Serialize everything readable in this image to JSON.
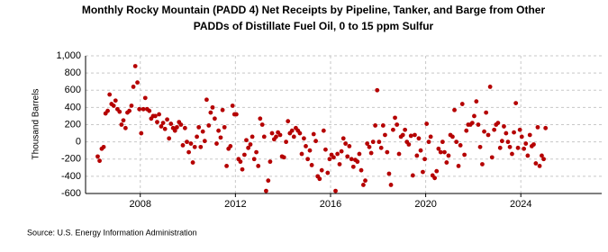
{
  "chart_data": {
    "type": "scatter",
    "title": [
      "Monthly Rocky Mountain (PADD 4) Net Receipts by Pipeline, Tanker, and Barge from Other",
      "PADDs of Distillate Fuel Oil, 0 to 15 ppm Sulfur"
    ],
    "ylabel": "Thousand Barrels",
    "source": "Source: U.S. Energy Information Administration",
    "color": "#b50000",
    "grid": true,
    "xlim": [
      2005.7,
      2027.4
    ],
    "xticks": [
      2008,
      2012,
      2016,
      2020,
      2024
    ],
    "ylim": [
      -600,
      1000
    ],
    "yticks": [
      -600,
      -400,
      -200,
      0,
      200,
      400,
      600,
      800,
      {
        "value": 1000,
        "label": "1,000"
      }
    ],
    "x": [
      2006.21,
      2006.29,
      2006.38,
      2006.46,
      2006.54,
      2006.63,
      2006.71,
      2006.79,
      2006.88,
      2006.96,
      2007.04,
      2007.13,
      2007.21,
      2007.29,
      2007.38,
      2007.46,
      2007.54,
      2007.63,
      2007.71,
      2007.79,
      2007.88,
      2007.96,
      2008.04,
      2008.13,
      2008.21,
      2008.29,
      2008.38,
      2008.46,
      2008.54,
      2008.63,
      2008.71,
      2008.79,
      2008.88,
      2008.96,
      2009.04,
      2009.13,
      2009.21,
      2009.29,
      2009.38,
      2009.46,
      2009.54,
      2009.63,
      2009.71,
      2009.79,
      2009.88,
      2009.96,
      2010.04,
      2010.13,
      2010.21,
      2010.29,
      2010.38,
      2010.46,
      2010.54,
      2010.63,
      2010.71,
      2010.79,
      2010.88,
      2010.96,
      2011.04,
      2011.13,
      2011.21,
      2011.29,
      2011.38,
      2011.46,
      2011.54,
      2011.63,
      2011.71,
      2011.79,
      2011.88,
      2011.96,
      2012.04,
      2012.13,
      2012.21,
      2012.29,
      2012.38,
      2012.46,
      2012.54,
      2012.63,
      2012.71,
      2012.79,
      2012.88,
      2012.96,
      2013.04,
      2013.13,
      2013.21,
      2013.29,
      2013.38,
      2013.46,
      2013.54,
      2013.63,
      2013.71,
      2013.79,
      2013.88,
      2013.96,
      2014.04,
      2014.13,
      2014.21,
      2014.29,
      2014.38,
      2014.46,
      2014.54,
      2014.63,
      2014.71,
      2014.79,
      2014.88,
      2014.96,
      2015.04,
      2015.13,
      2015.21,
      2015.29,
      2015.38,
      2015.46,
      2015.54,
      2015.63,
      2015.71,
      2015.79,
      2015.88,
      2015.96,
      2016.04,
      2016.13,
      2016.21,
      2016.29,
      2016.38,
      2016.46,
      2016.54,
      2016.63,
      2016.71,
      2016.79,
      2016.88,
      2016.96,
      2017.04,
      2017.13,
      2017.21,
      2017.29,
      2017.38,
      2017.46,
      2017.54,
      2017.63,
      2017.71,
      2017.79,
      2017.88,
      2017.96,
      2018.04,
      2018.13,
      2018.21,
      2018.29,
      2018.38,
      2018.46,
      2018.54,
      2018.63,
      2018.71,
      2018.79,
      2018.88,
      2018.96,
      2019.04,
      2019.13,
      2019.21,
      2019.29,
      2019.38,
      2019.46,
      2019.54,
      2019.63,
      2019.71,
      2019.79,
      2019.88,
      2019.96,
      2020.04,
      2020.13,
      2020.21,
      2020.29,
      2020.38,
      2020.46,
      2020.54,
      2020.63,
      2020.71,
      2020.79,
      2020.88,
      2020.96,
      2021.04,
      2021.13,
      2021.21,
      2021.29,
      2021.38,
      2021.46,
      2021.54,
      2021.63,
      2021.71,
      2021.79,
      2021.88,
      2021.96,
      2022.04,
      2022.13,
      2022.21,
      2022.29,
      2022.38,
      2022.46,
      2022.54,
      2022.63,
      2022.71,
      2022.79,
      2022.88,
      2022.96,
      2023.04,
      2023.13,
      2023.21,
      2023.29,
      2023.38,
      2023.46,
      2023.54,
      2023.63,
      2023.71,
      2023.79,
      2023.88,
      2023.96,
      2024.04,
      2024.13,
      2024.21,
      2024.29,
      2024.38,
      2024.46,
      2024.54,
      2024.63,
      2024.71,
      2024.79,
      2024.88,
      2024.96,
      2025.04
    ],
    "values": [
      -170,
      -220,
      -80,
      -60,
      330,
      360,
      550,
      440,
      420,
      480,
      380,
      350,
      200,
      250,
      160,
      340,
      360,
      420,
      640,
      880,
      690,
      380,
      100,
      380,
      510,
      380,
      360,
      270,
      300,
      300,
      230,
      320,
      180,
      220,
      150,
      260,
      40,
      210,
      160,
      130,
      170,
      230,
      200,
      -40,
      160,
      0,
      -120,
      -20,
      -240,
      -60,
      60,
      170,
      -60,
      120,
      10,
      490,
      190,
      340,
      400,
      270,
      -20,
      130,
      50,
      370,
      170,
      -280,
      -80,
      -50,
      420,
      320,
      320,
      -200,
      -230,
      -320,
      -150,
      20,
      -70,
      -30,
      60,
      -200,
      -120,
      -280,
      270,
      200,
      60,
      -570,
      -450,
      -230,
      100,
      30,
      60,
      110,
      80,
      -170,
      -180,
      0,
      240,
      100,
      130,
      60,
      160,
      130,
      100,
      -140,
      40,
      -50,
      -200,
      -100,
      -270,
      90,
      10,
      -400,
      -430,
      -330,
      130,
      -90,
      -360,
      -200,
      -150,
      -180,
      -570,
      -140,
      -260,
      -110,
      40,
      -20,
      -170,
      -50,
      -200,
      -290,
      -210,
      -230,
      -140,
      -330,
      -500,
      -450,
      -20,
      -60,
      -130,
      0,
      190,
      600,
      0,
      -70,
      190,
      80,
      -120,
      -370,
      -500,
      140,
      280,
      200,
      -140,
      60,
      80,
      140,
      0,
      -30,
      70,
      -390,
      80,
      -160,
      40,
      -100,
      -350,
      -200,
      210,
      0,
      60,
      -390,
      -420,
      -340,
      -80,
      -120,
      0,
      -120,
      -240,
      -160,
      80,
      60,
      370,
      0,
      -280,
      -40,
      440,
      -150,
      130,
      200,
      200,
      220,
      300,
      470,
      200,
      -60,
      -260,
      120,
      340,
      80,
      640,
      -180,
      140,
      200,
      220,
      -70,
      10,
      180,
      100,
      0,
      -60,
      -140,
      110,
      450,
      -70,
      140,
      60,
      -80,
      -20,
      -160,
      80,
      -50,
      -30,
      -250,
      170,
      -280,
      -160,
      -200,
      160
    ]
  }
}
